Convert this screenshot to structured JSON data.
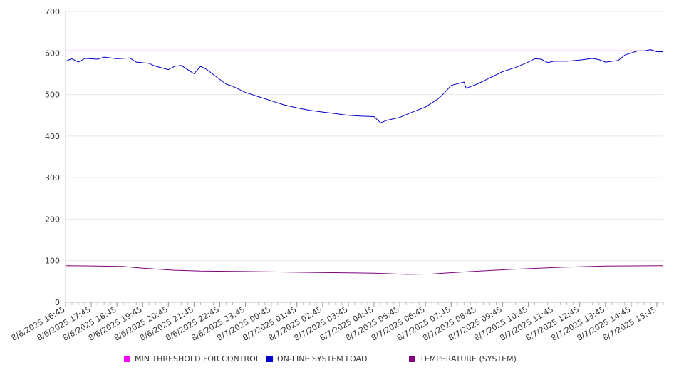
{
  "chart_data": {
    "type": "line",
    "title": "",
    "xlabel": "",
    "ylabel": "",
    "ylim": [
      0,
      700
    ],
    "yticks": [
      0,
      100,
      200,
      300,
      400,
      500,
      600,
      700
    ],
    "grid": true,
    "legend_position": "bottom",
    "x_tick_labels": [
      "8/6/2025 16:45",
      "8/6/2025 17:45",
      "8/6/2025 18:45",
      "8/6/2025 19:45",
      "8/6/2025 20:45",
      "8/6/2025 21:45",
      "8/6/2025 22:45",
      "8/6/2025 23:45",
      "8/7/2025 00:45",
      "8/7/2025 01:45",
      "8/7/2025 02:45",
      "8/7/2025 03:45",
      "8/7/2025 04:45",
      "8/7/2025 05:45",
      "8/7/2025 06:45",
      "8/7/2025 07:45",
      "8/7/2025 08:45",
      "8/7/2025 09:45",
      "8/7/2025 10:45",
      "8/7/2025 11:45",
      "8/7/2025 12:45",
      "8/7/2025 13:45",
      "8/7/2025 14:45",
      "8/7/2025 15:45"
    ],
    "x_start": "8/6/2025 16:45",
    "x_end": "8/7/2025 15:45",
    "series": [
      {
        "name": "MIN THRESHOLD FOR CONTROL",
        "color": "#FF00FF",
        "points": [
          [
            "8/6/2025 16:45",
            605
          ],
          [
            "8/7/2025 15:45",
            605
          ]
        ]
      },
      {
        "name": "ON-LINE SYSTEM LOAD",
        "color": "#0000CC",
        "points": [
          [
            "8/6/2025 16:45",
            580
          ],
          [
            "8/6/2025 17:00",
            586
          ],
          [
            "8/6/2025 17:15",
            578
          ],
          [
            "8/6/2025 17:30",
            587
          ],
          [
            "8/6/2025 18:00",
            585
          ],
          [
            "8/6/2025 18:15",
            590
          ],
          [
            "8/6/2025 18:45",
            586
          ],
          [
            "8/6/2025 19:15",
            588
          ],
          [
            "8/6/2025 19:30",
            578
          ],
          [
            "8/6/2025 20:00",
            575
          ],
          [
            "8/6/2025 20:15",
            568
          ],
          [
            "8/6/2025 20:45",
            560
          ],
          [
            "8/6/2025 21:00",
            568
          ],
          [
            "8/6/2025 21:15",
            570
          ],
          [
            "8/6/2025 21:30",
            560
          ],
          [
            "8/6/2025 21:45",
            550
          ],
          [
            "8/6/2025 22:00",
            568
          ],
          [
            "8/6/2025 22:15",
            560
          ],
          [
            "8/6/2025 22:30",
            548
          ],
          [
            "8/6/2025 23:00",
            525
          ],
          [
            "8/6/2025 23:15",
            520
          ],
          [
            "8/6/2025 23:45",
            505
          ],
          [
            "8/7/2025 00:15",
            495
          ],
          [
            "8/7/2025 00:45",
            485
          ],
          [
            "8/7/2025 01:15",
            475
          ],
          [
            "8/7/2025 01:45",
            468
          ],
          [
            "8/7/2025 02:15",
            462
          ],
          [
            "8/7/2025 02:45",
            458
          ],
          [
            "8/7/2025 03:15",
            454
          ],
          [
            "8/7/2025 03:45",
            450
          ],
          [
            "8/7/2025 04:15",
            448
          ],
          [
            "8/7/2025 04:45",
            447
          ],
          [
            "8/7/2025 05:00",
            432
          ],
          [
            "8/7/2025 05:15",
            438
          ],
          [
            "8/7/2025 05:45",
            445
          ],
          [
            "8/7/2025 06:15",
            458
          ],
          [
            "8/7/2025 06:45",
            470
          ],
          [
            "8/7/2025 07:15",
            490
          ],
          [
            "8/7/2025 07:30",
            505
          ],
          [
            "8/7/2025 07:45",
            522
          ],
          [
            "8/7/2025 08:15",
            530
          ],
          [
            "8/7/2025 08:20",
            515
          ],
          [
            "8/7/2025 08:45",
            525
          ],
          [
            "8/7/2025 09:15",
            540
          ],
          [
            "8/7/2025 09:45",
            555
          ],
          [
            "8/7/2025 10:15",
            565
          ],
          [
            "8/7/2025 10:45",
            578
          ],
          [
            "8/7/2025 11:00",
            586
          ],
          [
            "8/7/2025 11:15",
            585
          ],
          [
            "8/7/2025 11:30",
            577
          ],
          [
            "8/7/2025 11:45",
            580
          ],
          [
            "8/7/2025 12:15",
            580
          ],
          [
            "8/7/2025 12:45",
            583
          ],
          [
            "8/7/2025 13:15",
            587
          ],
          [
            "8/7/2025 13:30",
            584
          ],
          [
            "8/7/2025 13:45",
            578
          ],
          [
            "8/7/2025 14:15",
            582
          ],
          [
            "8/7/2025 14:30",
            595
          ],
          [
            "8/7/2025 14:45",
            600
          ],
          [
            "8/7/2025 15:00",
            605
          ],
          [
            "8/7/2025 15:15",
            605
          ],
          [
            "8/7/2025 15:30",
            608
          ],
          [
            "8/7/2025 15:45",
            603
          ],
          [
            "8/7/2025 16:00",
            603
          ]
        ]
      },
      {
        "name": "TEMPERATURE (SYSTEM)",
        "color": "#800080",
        "points": [
          [
            "8/6/2025 16:45",
            88
          ],
          [
            "8/6/2025 18:00",
            87
          ],
          [
            "8/6/2025 19:00",
            86
          ],
          [
            "8/6/2025 19:45",
            82
          ],
          [
            "8/6/2025 21:00",
            77
          ],
          [
            "8/6/2025 22:00",
            75
          ],
          [
            "8/6/2025 23:45",
            74
          ],
          [
            "8/7/2025 02:00",
            72
          ],
          [
            "8/7/2025 04:45",
            70
          ],
          [
            "8/7/2025 06:00",
            67
          ],
          [
            "8/7/2025 07:00",
            68
          ],
          [
            "8/7/2025 08:00",
            72
          ],
          [
            "8/7/2025 10:00",
            79
          ],
          [
            "8/7/2025 12:00",
            84
          ],
          [
            "8/7/2025 13:45",
            87
          ],
          [
            "8/7/2025 16:00",
            88
          ]
        ]
      }
    ]
  }
}
